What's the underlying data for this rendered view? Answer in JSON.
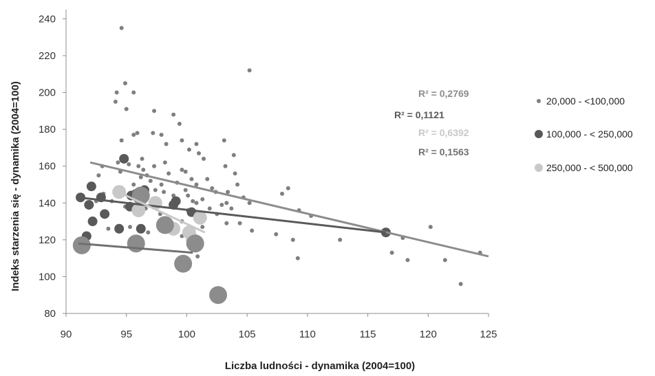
{
  "chart_data": {
    "type": "scatter",
    "xlabel": "Liczba ludności - dynamika (2004=100)",
    "ylabel": "Indeks starzenia się  - dynamika (2004=100)",
    "xlim": [
      90,
      125
    ],
    "ylim": [
      80,
      245
    ],
    "x_ticks": [
      90,
      95,
      100,
      105,
      110,
      115,
      120,
      125
    ],
    "y_ticks": [
      80,
      100,
      120,
      140,
      160,
      180,
      200,
      220,
      240
    ],
    "grid": false,
    "legend_position": "right",
    "series": [
      {
        "name": "20,000 - <100,000",
        "color": "#7f7f7f",
        "marker_size": "small",
        "points": [
          [
            94.6,
            235
          ],
          [
            94.2,
            200
          ],
          [
            94.9,
            205
          ],
          [
            95.6,
            200
          ],
          [
            94.1,
            195
          ],
          [
            95.0,
            191
          ],
          [
            97.3,
            190
          ],
          [
            98.9,
            188
          ],
          [
            99.4,
            183
          ],
          [
            97.2,
            178
          ],
          [
            97.9,
            177
          ],
          [
            95.6,
            177
          ],
          [
            99.6,
            174
          ],
          [
            103.1,
            174
          ],
          [
            94.6,
            174
          ],
          [
            95.9,
            178
          ],
          [
            105.2,
            212
          ],
          [
            98.3,
            172
          ],
          [
            100.8,
            172
          ],
          [
            100.2,
            169
          ],
          [
            101.0,
            167
          ],
          [
            101.4,
            164
          ],
          [
            103.9,
            166
          ],
          [
            99.9,
            157
          ],
          [
            94.3,
            162
          ],
          [
            96.0,
            160
          ],
          [
            96.4,
            158
          ],
          [
            96.2,
            154
          ],
          [
            97.0,
            152
          ],
          [
            97.9,
            150
          ],
          [
            98.5,
            156
          ],
          [
            99.6,
            158
          ],
          [
            99.2,
            151
          ],
          [
            100.4,
            153
          ],
          [
            101.7,
            153
          ],
          [
            103.2,
            160
          ],
          [
            104.0,
            156
          ],
          [
            102.1,
            148
          ],
          [
            103.4,
            146
          ],
          [
            104.2,
            150
          ],
          [
            104.7,
            143
          ],
          [
            105.2,
            140
          ],
          [
            103.7,
            137
          ],
          [
            102.5,
            134
          ],
          [
            100.8,
            140
          ],
          [
            100.1,
            136
          ],
          [
            99.6,
            130
          ],
          [
            98.5,
            131
          ],
          [
            97.8,
            134
          ],
          [
            96.6,
            137
          ],
          [
            94.9,
            138
          ],
          [
            93.8,
            141
          ],
          [
            93.1,
            145
          ],
          [
            92.5,
            141
          ],
          [
            93.5,
            126
          ],
          [
            95.3,
            127
          ],
          [
            96.8,
            124
          ],
          [
            98.6,
            129
          ],
          [
            99.6,
            122
          ],
          [
            101.3,
            127
          ],
          [
            103.3,
            129
          ],
          [
            104.4,
            129
          ],
          [
            105.4,
            125
          ],
          [
            107.4,
            123
          ],
          [
            107.9,
            145
          ],
          [
            108.4,
            148
          ],
          [
            109.3,
            136
          ],
          [
            110.3,
            133
          ],
          [
            108.8,
            120
          ],
          [
            109.2,
            110
          ],
          [
            112.7,
            120
          ],
          [
            116.3,
            125
          ],
          [
            117.0,
            113
          ],
          [
            117.9,
            121
          ],
          [
            118.3,
            109
          ],
          [
            120.2,
            127
          ],
          [
            121.4,
            109
          ],
          [
            122.7,
            96
          ],
          [
            124.3,
            113
          ],
          [
            100.9,
            111
          ],
          [
            95.2,
            161
          ],
          [
            96.7,
            155
          ],
          [
            97.4,
            147
          ],
          [
            98.1,
            146
          ],
          [
            98.9,
            144
          ],
          [
            99.9,
            147
          ],
          [
            100.8,
            150
          ],
          [
            101.3,
            142
          ],
          [
            102.4,
            146
          ],
          [
            97.7,
            141
          ],
          [
            96.1,
            143
          ],
          [
            95.6,
            150
          ],
          [
            94.5,
            157
          ],
          [
            93.0,
            160
          ],
          [
            92.7,
            155
          ],
          [
            100.5,
            141
          ],
          [
            101.9,
            137
          ],
          [
            102.9,
            139
          ],
          [
            100.1,
            144
          ],
          [
            98.2,
            162
          ],
          [
            97.3,
            160
          ],
          [
            96.3,
            164
          ],
          [
            103.3,
            140
          ],
          [
            101.5,
            132
          ]
        ]
      },
      {
        "name": "100,000 - < 250,000",
        "color": "#595959",
        "marker_size": "medium",
        "points": [
          [
            94.8,
            164
          ],
          [
            91.2,
            143
          ],
          [
            92.1,
            149
          ],
          [
            91.9,
            139
          ],
          [
            92.9,
            143
          ],
          [
            93.2,
            134
          ],
          [
            92.2,
            130
          ],
          [
            91.7,
            122
          ],
          [
            94.4,
            126
          ],
          [
            95.3,
            138
          ],
          [
            95.4,
            144
          ],
          [
            95.8,
            145
          ],
          [
            96.5,
            147
          ],
          [
            98.9,
            139
          ],
          [
            99.1,
            141
          ],
          [
            100.4,
            135
          ],
          [
            96.2,
            126
          ],
          [
            116.5,
            124
          ]
        ]
      },
      {
        "name": "250,000 - < 500,000",
        "color": "#c8c8c8",
        "marker_size": "large",
        "points": [
          [
            94.4,
            146
          ],
          [
            96.0,
            136
          ],
          [
            97.4,
            140
          ],
          [
            98.9,
            126
          ],
          [
            100.2,
            124
          ],
          [
            100.5,
            120
          ],
          [
            101.1,
            132
          ]
        ]
      },
      {
        "name": "",
        "color": "#8c8c8c",
        "marker_size": "xlarge",
        "points": [
          [
            91.3,
            117
          ],
          [
            95.8,
            118
          ],
          [
            99.7,
            107
          ],
          [
            100.7,
            118
          ],
          [
            98.2,
            128
          ],
          [
            96.2,
            144
          ],
          [
            102.6,
            90
          ]
        ]
      }
    ],
    "trendlines": [
      {
        "label": "R² = 0,2769",
        "color": "#8c8c8c",
        "x": [
          92.0,
          125.0
        ],
        "y": [
          162.0,
          111.0
        ]
      },
      {
        "label": "R² = 0,1121",
        "color": "#595959",
        "x": [
          91.0,
          116.5
        ],
        "y": [
          143.0,
          124.0
        ]
      },
      {
        "label": "R² = 0,6392",
        "color": "#c8c8c8",
        "x": [
          94.0,
          101.5
        ],
        "y": [
          147.0,
          124.0
        ]
      },
      {
        "label": "R² = 0,1563",
        "color": "#707070",
        "x": [
          91.0,
          100.5
        ],
        "y": [
          118.0,
          113.0
        ]
      }
    ],
    "legend": [
      {
        "label": "20,000 - <100,000",
        "color": "#7f7f7f"
      },
      {
        "label": "100,000 - < 250,000",
        "color": "#595959"
      },
      {
        "label": "250,000 - < 500,000",
        "color": "#c8c8c8"
      }
    ]
  }
}
